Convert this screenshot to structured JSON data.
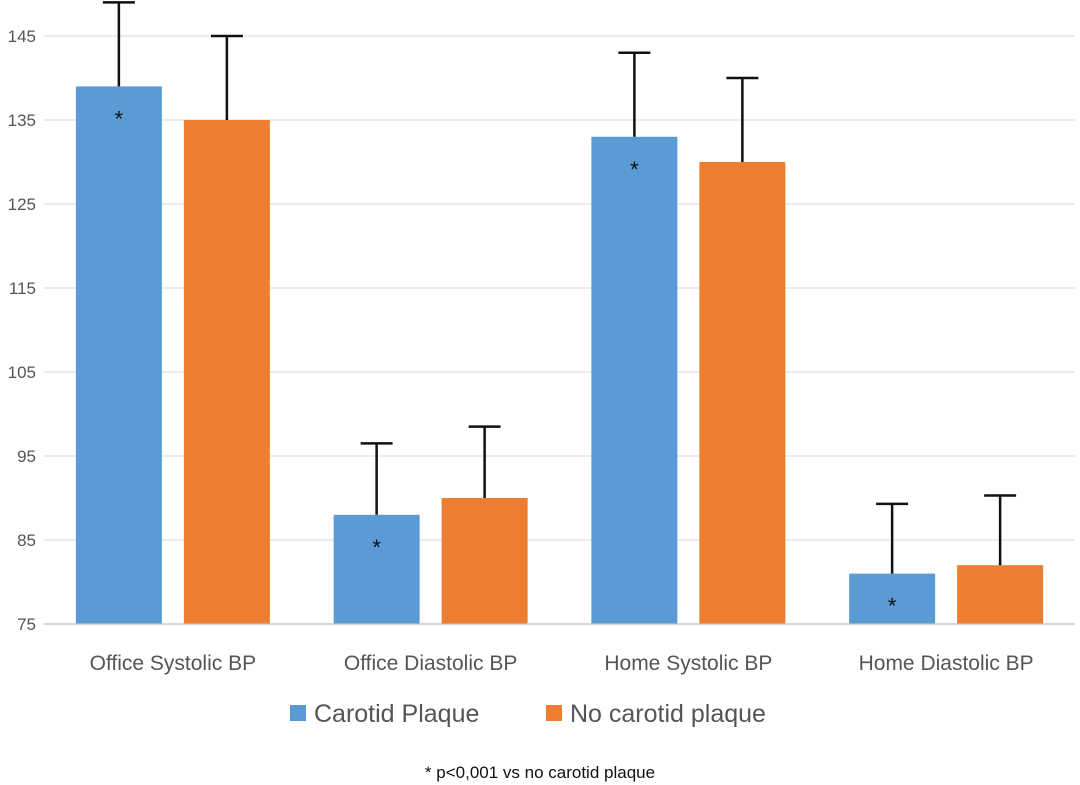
{
  "chart_data": {
    "type": "bar",
    "title": "",
    "xlabel": "",
    "ylabel": "",
    "ylim": [
      75,
      145
    ],
    "yticks": [
      75,
      85,
      95,
      105,
      115,
      125,
      135,
      145
    ],
    "grid": true,
    "legend_position": "bottom",
    "categories": [
      "Office Systolic BP",
      "Office Diastolic BP",
      "Home Systolic BP",
      "Home Diastolic BP"
    ],
    "series": [
      {
        "name": "Carotid Plaque",
        "color": "#5B9BD5",
        "values": [
          139,
          88,
          133,
          81
        ],
        "error_upper": [
          10,
          8.5,
          10,
          8.3
        ],
        "significance": [
          "*",
          "*",
          "*",
          "*"
        ]
      },
      {
        "name": "No carotid plaque",
        "color": "#ED7D31",
        "values": [
          135,
          90,
          130,
          82
        ],
        "error_upper": [
          10,
          8.5,
          10,
          8.3
        ],
        "significance": [
          "",
          "",
          "",
          ""
        ]
      }
    ],
    "footnote": "* p<0,001 vs no carotid plaque"
  }
}
